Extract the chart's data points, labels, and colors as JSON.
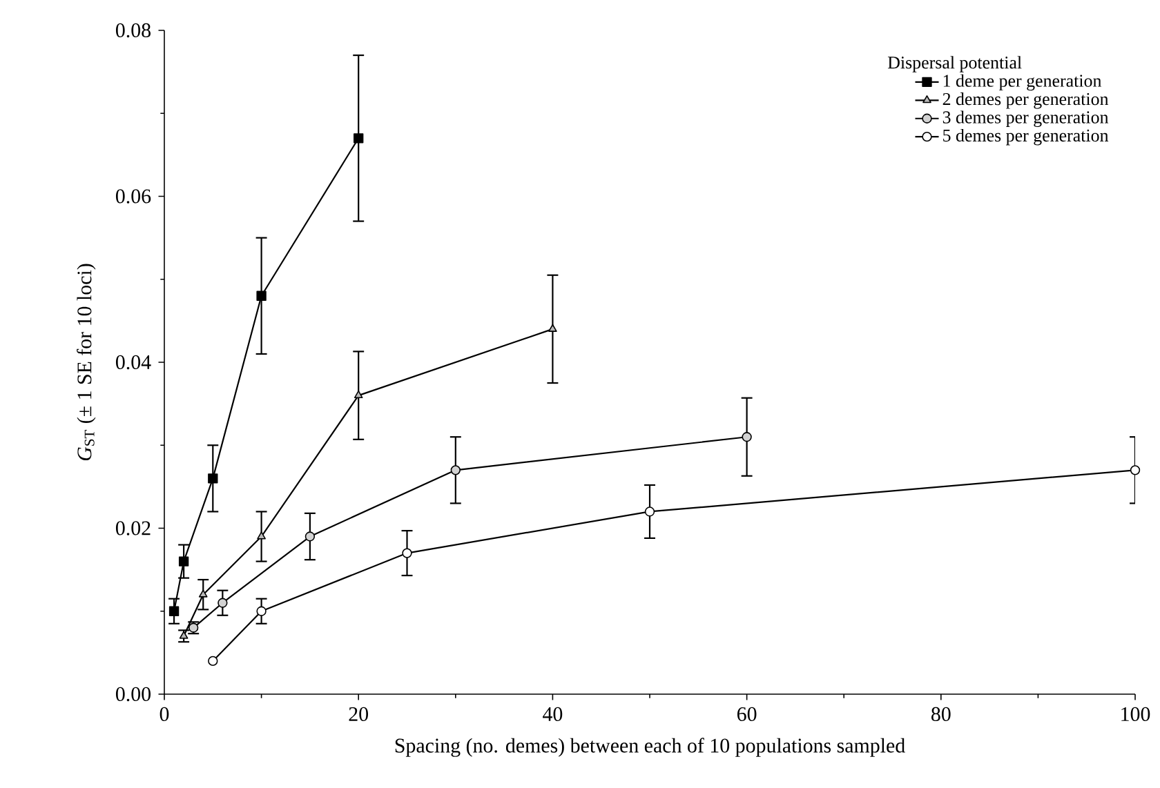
{
  "chart_data": {
    "type": "line",
    "xlabel": "Spacing (no. demes) between each of 10 populations sampled",
    "ylabel": "*G*$_{ST}$ (± 1 SE for 10 loci)",
    "legend_title": "Dispersal potential",
    "legend": "top right",
    "xlim": [
      0,
      100
    ],
    "xticks": [
      0,
      20,
      40,
      60,
      80,
      100
    ],
    "ylim": [
      0,
      0.08
    ],
    "yticks": [
      {
        "value": 0,
        "label": "0.00"
      },
      {
        "value": 0.02,
        "label": "0.02"
      },
      {
        "value": 0.04,
        "label": "0.04"
      },
      {
        "value": 0.06,
        "label": "0.06"
      },
      {
        "value": 0.08,
        "label": "0.08"
      }
    ],
    "series": [
      {
        "name": "1 deme per generation",
        "color": "#000000",
        "marker": "square",
        "x": [
          1,
          2,
          5,
          10,
          20
        ],
        "values": [
          0.01,
          0.016,
          0.026,
          0.048,
          0.067
        ],
        "errors": [
          0.0015,
          0.002,
          0.004,
          0.007,
          0.01
        ]
      },
      {
        "name": "2 demes per generation",
        "color": "#000000",
        "marker": "triangle",
        "x": [
          2,
          4,
          10,
          20,
          40
        ],
        "values": [
          0.007,
          0.012,
          0.019,
          0.036,
          0.044
        ],
        "errors": [
          0.0007,
          0.0018,
          0.003,
          0.0053,
          0.0065
        ]
      },
      {
        "name": "3 demes per generation",
        "color": "#000000",
        "marker": "circle",
        "x": [
          3,
          6,
          15,
          30,
          60
        ],
        "values": [
          0.008,
          0.011,
          0.019,
          0.027,
          0.031
        ],
        "errors": [
          0.0007,
          0.0015,
          0.0028,
          0.004,
          0.0047
        ]
      },
      {
        "name": "5 demes per generation",
        "color": "#000000",
        "marker": "circle",
        "x": [
          5,
          10,
          25,
          50,
          100
        ],
        "values": [
          0.004,
          0.01,
          0.017,
          0.022,
          0.027
        ],
        "errors": [
          null,
          0.0015,
          0.0027,
          0.0032,
          0.004
        ]
      }
    ]
  }
}
